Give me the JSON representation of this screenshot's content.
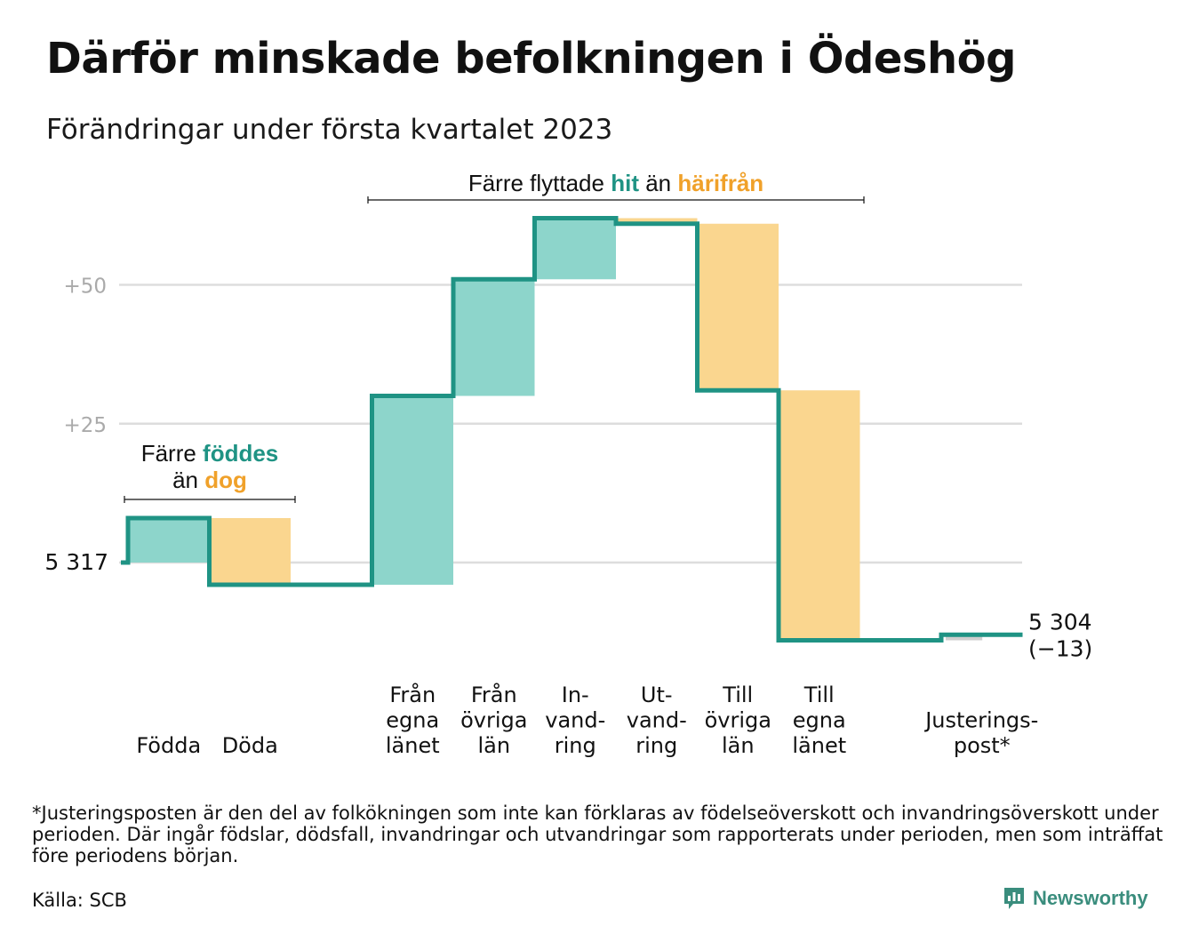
{
  "title": "Därför minskade befolkningen i Ödeshög",
  "subtitle": "Förändringar under första kvartalet 2023",
  "annotations": {
    "migration": {
      "prefix": "Färre flyttade ",
      "hit": "hit",
      "middle": " än ",
      "harifran": "härifrån"
    },
    "births": {
      "prefix": "Färre ",
      "foddes": "föddes",
      "line2_prefix": "än ",
      "dog": "dog"
    }
  },
  "colors": {
    "teal": "#1f9384",
    "teal_fill": "#8dd5cb",
    "orange_text": "#f0a12a",
    "orange_fill": "#fad68f",
    "grid": "#dddddd",
    "gray_fill": "#cfcfcf",
    "tick_text": "#aaaaaa"
  },
  "footnote": "*Justeringsposten är den del av folkökningen som inte kan förklaras av födelseöverskott och invandringsöverskott under perioden. Där ingår födslar, dödsfall, invandringar och utvandringar som rapporterats under perioden, men som inträffat före periodens början.",
  "source": "Källa: SCB",
  "brand": "Newsworthy",
  "chart_data": {
    "type": "waterfall",
    "start_value": 5317,
    "start_label": "5 317",
    "end_value": 5304,
    "end_label": "5 304",
    "end_change_label": "(−13)",
    "yticks": [
      {
        "value": 50,
        "label": "+50"
      },
      {
        "value": 25,
        "label": "+25"
      }
    ],
    "grid": true,
    "steps": [
      {
        "label": [
          "Födda"
        ],
        "change": 8,
        "kind": "inflow"
      },
      {
        "label": [
          "Döda"
        ],
        "change": -12,
        "kind": "outflow"
      },
      {
        "label": [],
        "change": 0,
        "kind": "spacer"
      },
      {
        "label": [
          "Från",
          "egna",
          "länet"
        ],
        "change": 34,
        "kind": "inflow"
      },
      {
        "label": [
          "Från",
          "övriga",
          "län"
        ],
        "change": 21,
        "kind": "inflow"
      },
      {
        "label": [
          "In-",
          "vand-",
          "ring"
        ],
        "change": 11,
        "kind": "inflow"
      },
      {
        "label": [
          "Ut-",
          "vand-",
          "ring"
        ],
        "change": -1,
        "kind": "outflow"
      },
      {
        "label": [
          "Till",
          "övriga",
          "län"
        ],
        "change": -30,
        "kind": "outflow"
      },
      {
        "label": [
          "Till",
          "egna",
          "länet"
        ],
        "change": -45,
        "kind": "outflow"
      },
      {
        "label": [],
        "change": 0,
        "kind": "spacer"
      },
      {
        "label": [
          "Justerings-",
          "post*"
        ],
        "change": 1,
        "kind": "adjustment"
      }
    ]
  }
}
